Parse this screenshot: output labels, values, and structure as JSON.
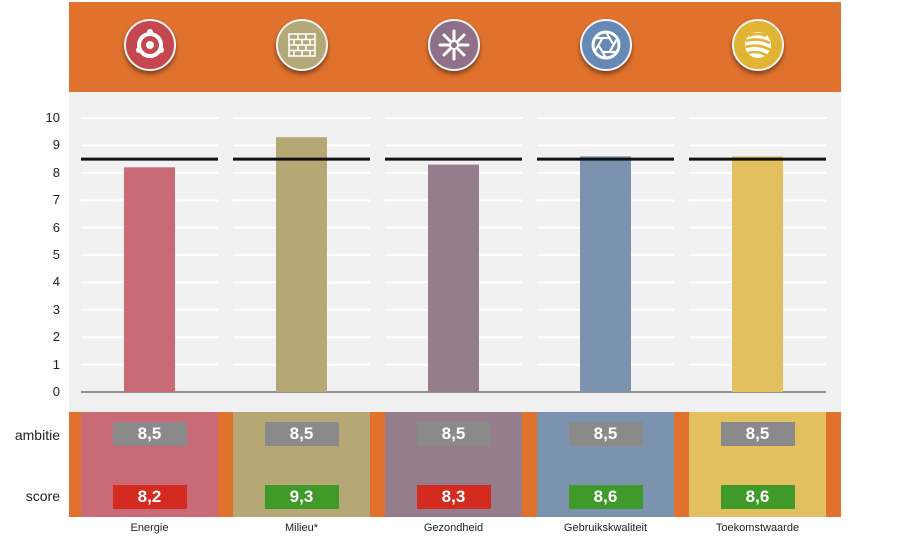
{
  "chart_data": {
    "type": "bar",
    "categories": [
      "Energie",
      "Milieu*",
      "Gezondheid",
      "Gebruikskwaliteit",
      "Toekomstwaarde"
    ],
    "series": [
      {
        "values": [
          8.2,
          9.3,
          8.3,
          8.6,
          8.6
        ]
      }
    ],
    "ambitie": [
      8.5,
      8.5,
      8.5,
      8.5,
      8.5
    ],
    "ambitie_labels": [
      "8,5",
      "8,5",
      "8,5",
      "8,5",
      "8,5"
    ],
    "score_labels": [
      "8,2",
      "9,3",
      "8,3",
      "8,6",
      "8,6"
    ],
    "score_status_colors": [
      "#d42b20",
      "#3f9a2a",
      "#d42b20",
      "#3f9a2a",
      "#3f9a2a"
    ],
    "bar_colors": [
      "#c86b76",
      "#b5a875",
      "#957d8e",
      "#7b93ae",
      "#e2c05f"
    ],
    "icons": [
      "flower-icon",
      "brick-wall-icon",
      "snowflake-icon",
      "aperture-icon",
      "striped-globe-icon"
    ],
    "icon_colors": [
      "#c4474f",
      "#b3a877",
      "#8e7088",
      "#6688b5",
      "#e1b433"
    ],
    "ylim": [
      0,
      10
    ],
    "yticks": [
      "0",
      "1",
      "2",
      "3",
      "4",
      "5",
      "6",
      "7",
      "8",
      "9",
      "10"
    ],
    "row_labels": {
      "ambitie": "ambitie",
      "score": "score"
    },
    "grid": true
  }
}
